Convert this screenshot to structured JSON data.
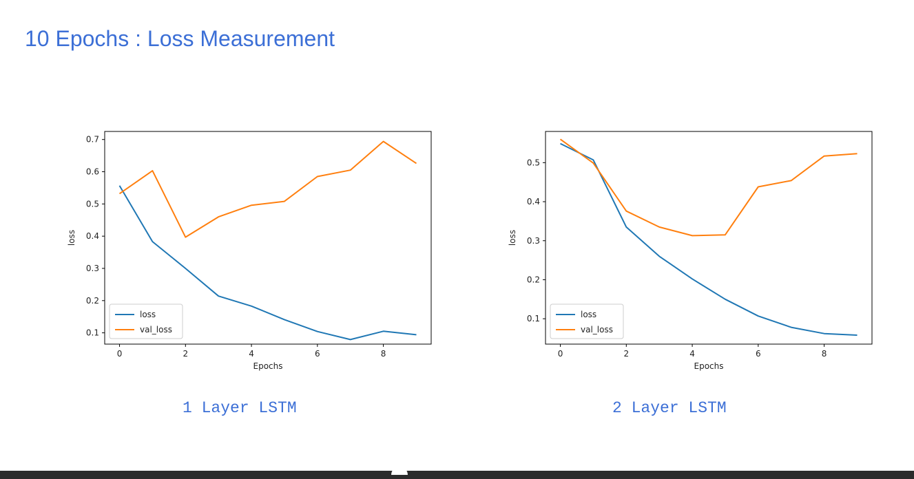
{
  "title": "10 Epochs : Loss Measurement",
  "captions": [
    "1 Layer LSTM",
    "2 Layer LSTM"
  ],
  "chart_data": [
    {
      "type": "line",
      "title": "",
      "xlabel": "Epochs",
      "ylabel": "loss",
      "x": [
        0,
        1,
        2,
        3,
        4,
        5,
        6,
        7,
        8,
        9
      ],
      "xlim": [
        -0.45,
        9.45
      ],
      "ylim": [
        0.065,
        0.725
      ],
      "xticks": [
        0,
        2,
        4,
        6,
        8
      ],
      "yticks": [
        0.1,
        0.2,
        0.3,
        0.4,
        0.5,
        0.6,
        0.7
      ],
      "grid": false,
      "legend": "lower-left",
      "series": [
        {
          "name": "loss",
          "color": "#1f77b4",
          "values": [
            0.557,
            0.383,
            0.3,
            0.214,
            0.183,
            0.141,
            0.104,
            0.079,
            0.105,
            0.094
          ]
        },
        {
          "name": "val_loss",
          "color": "#ff7f0e",
          "values": [
            0.532,
            0.603,
            0.397,
            0.46,
            0.496,
            0.508,
            0.585,
            0.605,
            0.694,
            0.626
          ]
        }
      ]
    },
    {
      "type": "line",
      "title": "",
      "xlabel": "Epochs",
      "ylabel": "loss",
      "x": [
        0,
        1,
        2,
        3,
        4,
        5,
        6,
        7,
        8,
        9
      ],
      "xlim": [
        -0.45,
        9.45
      ],
      "ylim": [
        0.035,
        0.58
      ],
      "xticks": [
        0,
        2,
        4,
        6,
        8
      ],
      "yticks": [
        0.1,
        0.2,
        0.3,
        0.4,
        0.5
      ],
      "grid": false,
      "legend": "lower-left",
      "series": [
        {
          "name": "loss",
          "color": "#1f77b4",
          "values": [
            0.549,
            0.507,
            0.335,
            0.26,
            0.202,
            0.15,
            0.107,
            0.078,
            0.062,
            0.058
          ]
        },
        {
          "name": "val_loss",
          "color": "#ff7f0e",
          "values": [
            0.56,
            0.499,
            0.376,
            0.335,
            0.313,
            0.315,
            0.438,
            0.454,
            0.517,
            0.523
          ]
        }
      ]
    }
  ]
}
